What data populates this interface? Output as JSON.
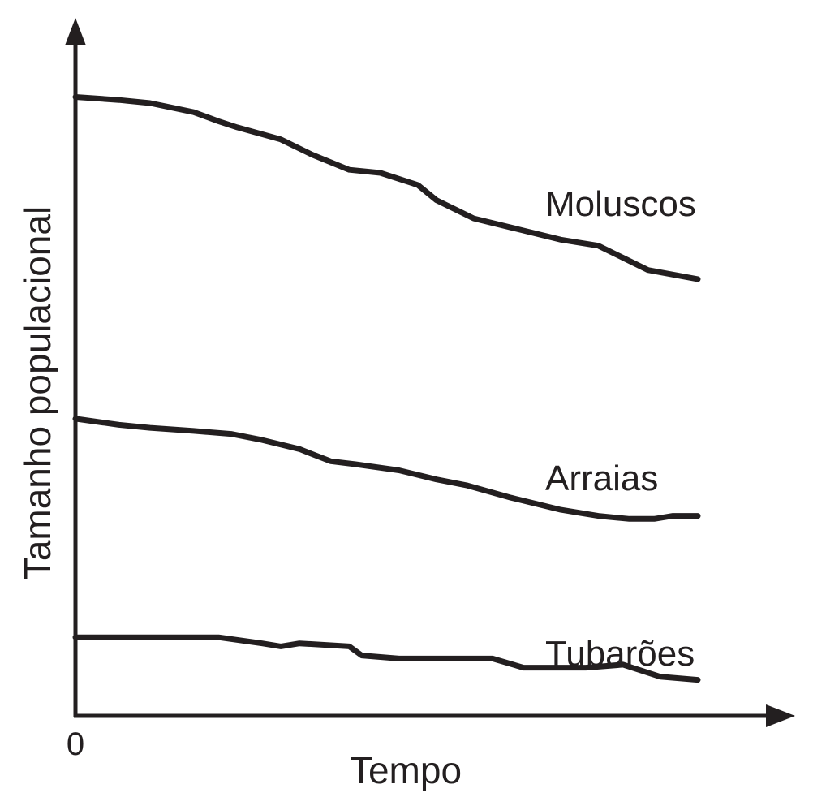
{
  "chart_data": {
    "type": "line",
    "title": "",
    "xlabel": "Tempo",
    "ylabel": "Tamanho populacional",
    "x_ticks": [
      "0"
    ],
    "y_ticks": [],
    "xlim": [
      0,
      100
    ],
    "ylim": [
      0,
      100
    ],
    "grid": false,
    "legend": "none (series labeled inline)",
    "line_color": "#231f20",
    "series": [
      {
        "name": "Moluscos",
        "x": [
          0,
          7,
          12,
          19,
          23,
          26,
          33,
          38,
          44,
          49,
          55,
          58,
          60,
          64,
          70,
          78,
          84,
          88,
          92,
          100
        ],
        "y": [
          99,
          98.5,
          98,
          96.5,
          95,
          94,
          92,
          89.5,
          87,
          86.5,
          84.5,
          82,
          81,
          79,
          77.5,
          75.5,
          74.5,
          72.5,
          70.5,
          69
        ]
      },
      {
        "name": "Arraias",
        "x": [
          0,
          7,
          12,
          19,
          25,
          30,
          36,
          41,
          45,
          52,
          58,
          63,
          70,
          78,
          84,
          89,
          93,
          96,
          100
        ],
        "y": [
          46,
          45,
          44.5,
          44,
          43.5,
          42.5,
          41,
          39,
          38.5,
          37.5,
          36,
          35,
          33,
          31,
          30,
          29.5,
          29.5,
          30,
          30
        ]
      },
      {
        "name": "Tubarões",
        "x": [
          0,
          12,
          23,
          30,
          33,
          36,
          44,
          46,
          52,
          59,
          67,
          72,
          77,
          82,
          88,
          94,
          100
        ],
        "y": [
          10,
          10,
          10,
          9,
          8.5,
          9,
          8.5,
          7,
          6.5,
          6.5,
          6.5,
          5,
          5,
          5,
          5.5,
          3.5,
          3
        ]
      }
    ]
  }
}
